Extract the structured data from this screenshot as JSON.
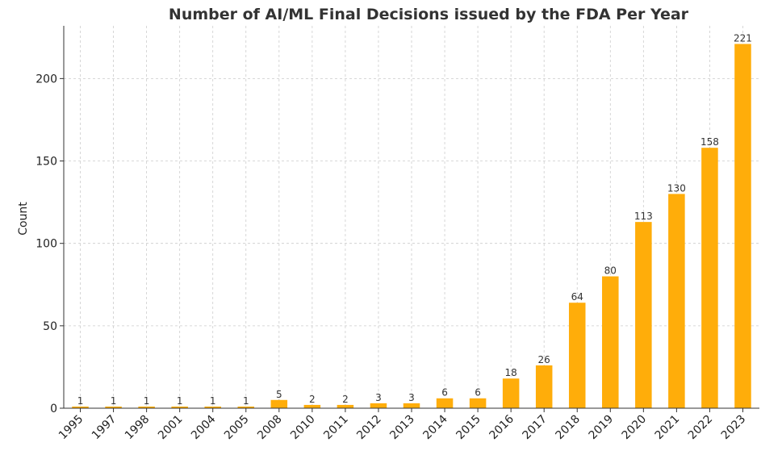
{
  "chart_data": {
    "type": "bar",
    "title": "Number of AI/ML Final Decisions issued by the FDA Per Year",
    "xlabel": "",
    "ylabel": "Count",
    "categories": [
      "1995",
      "1997",
      "1998",
      "2001",
      "2004",
      "2005",
      "2008",
      "2010",
      "2011",
      "2012",
      "2013",
      "2014",
      "2015",
      "2016",
      "2017",
      "2018",
      "2019",
      "2020",
      "2021",
      "2022",
      "2023"
    ],
    "values": [
      1,
      1,
      1,
      1,
      1,
      1,
      5,
      2,
      2,
      3,
      3,
      6,
      6,
      18,
      26,
      64,
      80,
      113,
      130,
      158,
      221
    ],
    "ylim": [
      0,
      232
    ],
    "yticks": [
      0,
      50,
      100,
      150,
      200
    ],
    "grid": true,
    "bar_color": "#ffad0a",
    "data_labels": true
  }
}
